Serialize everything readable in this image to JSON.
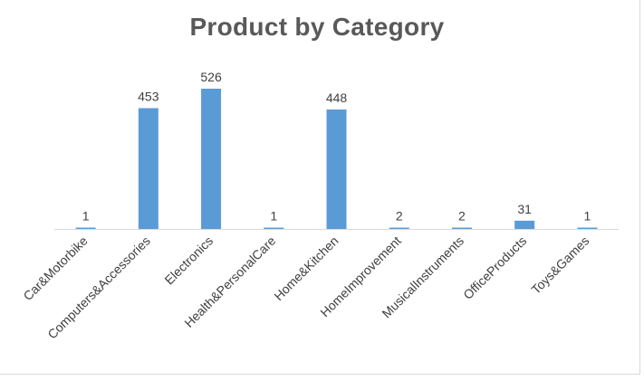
{
  "chart_data": {
    "type": "bar",
    "title": "Product by Category",
    "categories": [
      "Car&Motorbike",
      "Computers&Accessories",
      "Electronics",
      "Health&PersonalCare",
      "Home&Kitchen",
      "HomeImprovement",
      "MusicalInstruments",
      "OfficeProducts",
      "Toys&Games"
    ],
    "values": [
      1,
      453,
      526,
      1,
      448,
      2,
      2,
      31,
      1
    ],
    "data_labels": [
      "1",
      "453",
      "526",
      "1",
      "448",
      "2",
      "2",
      "31",
      "1"
    ],
    "xlabel": "",
    "ylabel": "",
    "ylim": [
      0,
      526
    ],
    "grid": false,
    "legend": "none",
    "bar_color": "#5B9BD5",
    "axis_color": "#d9d9d9",
    "text_color": "#404040",
    "title_color": "#595959"
  }
}
